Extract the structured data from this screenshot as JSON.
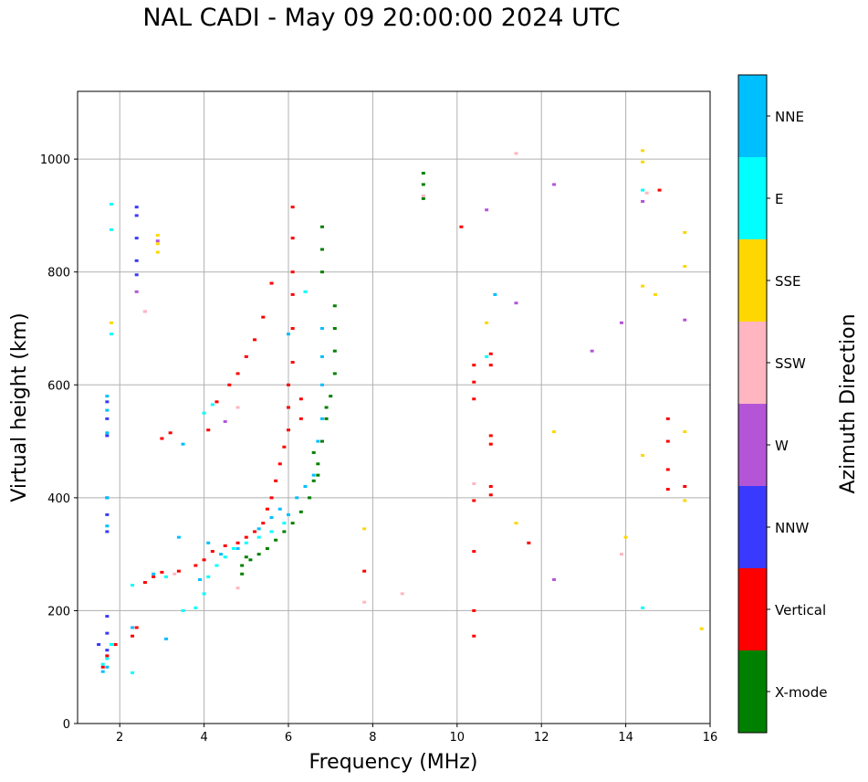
{
  "chart_data": {
    "type": "scatter",
    "title": "NAL CADI - May 09 20:00:00 2024 UTC",
    "xlabel": "Frequency (MHz)",
    "ylabel": "Virtual height (km)",
    "xlim": [
      1.0,
      16.0
    ],
    "ylim": [
      0,
      1120
    ],
    "xticks": [
      2,
      4,
      6,
      8,
      10,
      12,
      14,
      16
    ],
    "yticks": [
      0,
      200,
      400,
      600,
      800,
      1000
    ],
    "grid": true,
    "colorbar": {
      "label": "Azimuth Direction",
      "categories": [
        {
          "name": "X-mode",
          "color": "#008000"
        },
        {
          "name": "Vertical",
          "color": "#ff0000"
        },
        {
          "name": "NNW",
          "color": "#3a3aff"
        },
        {
          "name": "W",
          "color": "#b455d8"
        },
        {
          "name": "SSW",
          "color": "#ffb6c1"
        },
        {
          "name": "SSE",
          "color": "#ffd700"
        },
        {
          "name": "E",
          "color": "#00ffff"
        },
        {
          "name": "NNE",
          "color": "#00bfff"
        }
      ]
    },
    "series": [
      {
        "name": "X-mode",
        "points": [
          [
            4.9,
            280
          ],
          [
            5.1,
            290
          ],
          [
            5.3,
            300
          ],
          [
            5.5,
            310
          ],
          [
            5.7,
            325
          ],
          [
            5.9,
            340
          ],
          [
            6.1,
            355
          ],
          [
            6.3,
            375
          ],
          [
            6.5,
            400
          ],
          [
            6.6,
            430
          ],
          [
            6.7,
            460
          ],
          [
            6.8,
            500
          ],
          [
            6.9,
            540
          ],
          [
            7.0,
            580
          ],
          [
            7.1,
            620
          ],
          [
            7.1,
            660
          ],
          [
            7.1,
            700
          ],
          [
            7.1,
            740
          ],
          [
            6.8,
            800
          ],
          [
            6.8,
            840
          ],
          [
            6.8,
            880
          ],
          [
            4.9,
            265
          ],
          [
            5.0,
            295
          ],
          [
            9.2,
            930
          ],
          [
            9.2,
            955
          ],
          [
            9.2,
            975
          ],
          [
            6.7,
            440
          ],
          [
            6.6,
            480
          ],
          [
            6.9,
            560
          ]
        ]
      },
      {
        "name": "Vertical",
        "points": [
          [
            1.6,
            100
          ],
          [
            1.7,
            120
          ],
          [
            1.9,
            140
          ],
          [
            2.3,
            155
          ],
          [
            2.4,
            170
          ],
          [
            2.6,
            250
          ],
          [
            2.8,
            260
          ],
          [
            3.0,
            268
          ],
          [
            3.4,
            270
          ],
          [
            3.8,
            280
          ],
          [
            4.0,
            290
          ],
          [
            4.2,
            305
          ],
          [
            4.5,
            315
          ],
          [
            4.8,
            320
          ],
          [
            5.0,
            330
          ],
          [
            5.2,
            340
          ],
          [
            5.4,
            355
          ],
          [
            5.5,
            380
          ],
          [
            5.6,
            400
          ],
          [
            5.7,
            430
          ],
          [
            5.8,
            460
          ],
          [
            5.9,
            490
          ],
          [
            6.0,
            520
          ],
          [
            6.0,
            560
          ],
          [
            6.0,
            600
          ],
          [
            6.1,
            640
          ],
          [
            6.1,
            700
          ],
          [
            6.1,
            760
          ],
          [
            6.1,
            800
          ],
          [
            6.1,
            860
          ],
          [
            6.1,
            915
          ],
          [
            4.1,
            520
          ],
          [
            4.3,
            570
          ],
          [
            4.6,
            600
          ],
          [
            4.8,
            620
          ],
          [
            5.0,
            650
          ],
          [
            5.2,
            680
          ],
          [
            5.4,
            720
          ],
          [
            5.6,
            780
          ],
          [
            3.0,
            505
          ],
          [
            3.2,
            515
          ],
          [
            6.3,
            540
          ],
          [
            6.3,
            575
          ],
          [
            10.1,
            880
          ],
          [
            10.4,
            155
          ],
          [
            10.4,
            200
          ],
          [
            10.4,
            305
          ],
          [
            10.4,
            395
          ],
          [
            10.4,
            575
          ],
          [
            10.4,
            605
          ],
          [
            10.4,
            635
          ],
          [
            10.8,
            405
          ],
          [
            10.8,
            420
          ],
          [
            10.8,
            495
          ],
          [
            10.8,
            510
          ],
          [
            10.8,
            635
          ],
          [
            10.8,
            655
          ],
          [
            7.8,
            270
          ],
          [
            11.7,
            320
          ],
          [
            15.0,
            415
          ],
          [
            15.0,
            450
          ],
          [
            15.0,
            500
          ],
          [
            15.0,
            540
          ],
          [
            15.4,
            420
          ],
          [
            14.8,
            945
          ]
        ]
      },
      {
        "name": "NNW",
        "points": [
          [
            1.7,
            340
          ],
          [
            1.7,
            370
          ],
          [
            1.7,
            400
          ],
          [
            1.7,
            510
          ],
          [
            1.7,
            540
          ],
          [
            1.7,
            570
          ],
          [
            1.7,
            190
          ],
          [
            1.7,
            160
          ],
          [
            1.7,
            130
          ],
          [
            2.4,
            820
          ],
          [
            2.4,
            860
          ],
          [
            2.4,
            900
          ],
          [
            2.4,
            915
          ],
          [
            2.4,
            795
          ],
          [
            1.5,
            140
          ]
        ]
      },
      {
        "name": "W",
        "points": [
          [
            12.3,
            955
          ],
          [
            12.3,
            255
          ],
          [
            10.7,
            910
          ],
          [
            11.4,
            745
          ],
          [
            13.2,
            660
          ],
          [
            13.9,
            710
          ],
          [
            14.4,
            925
          ],
          [
            15.4,
            715
          ],
          [
            2.4,
            765
          ],
          [
            2.6,
            730
          ],
          [
            4.5,
            535
          ],
          [
            2.9,
            855
          ]
        ]
      },
      {
        "name": "SSW",
        "points": [
          [
            11.4,
            1010
          ],
          [
            10.4,
            425
          ],
          [
            8.7,
            230
          ],
          [
            7.8,
            215
          ],
          [
            13.9,
            300
          ],
          [
            14.5,
            940
          ],
          [
            2.6,
            730
          ],
          [
            4.8,
            560
          ],
          [
            4.8,
            240
          ],
          [
            9.2,
            935
          ],
          [
            3.3,
            265
          ]
        ]
      },
      {
        "name": "SSE",
        "points": [
          [
            14.4,
            1015
          ],
          [
            14.4,
            995
          ],
          [
            14.4,
            775
          ],
          [
            14.7,
            760
          ],
          [
            14.4,
            475
          ],
          [
            15.4,
            870
          ],
          [
            15.4,
            810
          ],
          [
            15.4,
            517
          ],
          [
            15.4,
            395
          ],
          [
            15.8,
            168
          ],
          [
            12.3,
            517
          ],
          [
            10.7,
            710
          ],
          [
            11.4,
            355
          ],
          [
            7.8,
            345
          ],
          [
            2.9,
            865
          ],
          [
            2.9,
            850
          ],
          [
            2.9,
            835
          ],
          [
            1.8,
            710
          ],
          [
            14.0,
            330
          ]
        ]
      },
      {
        "name": "E",
        "points": [
          [
            1.6,
            105
          ],
          [
            1.7,
            115
          ],
          [
            1.8,
            140
          ],
          [
            2.3,
            245
          ],
          [
            3.1,
            260
          ],
          [
            3.5,
            200
          ],
          [
            3.8,
            205
          ],
          [
            4.0,
            230
          ],
          [
            4.1,
            260
          ],
          [
            4.3,
            280
          ],
          [
            4.5,
            295
          ],
          [
            4.7,
            310
          ],
          [
            5.0,
            320
          ],
          [
            5.3,
            330
          ],
          [
            5.6,
            340
          ],
          [
            5.9,
            355
          ],
          [
            1.8,
            920
          ],
          [
            1.8,
            875
          ],
          [
            1.8,
            690
          ],
          [
            4.0,
            550
          ],
          [
            4.2,
            565
          ],
          [
            14.4,
            205
          ],
          [
            14.4,
            945
          ],
          [
            6.4,
            765
          ],
          [
            10.7,
            650
          ],
          [
            2.3,
            90
          ]
        ]
      },
      {
        "name": "NNE",
        "points": [
          [
            1.7,
            350
          ],
          [
            1.7,
            400
          ],
          [
            1.7,
            515
          ],
          [
            1.7,
            555
          ],
          [
            1.7,
            580
          ],
          [
            2.3,
            170
          ],
          [
            3.1,
            150
          ],
          [
            3.4,
            330
          ],
          [
            3.5,
            495
          ],
          [
            3.9,
            255
          ],
          [
            4.1,
            320
          ],
          [
            4.4,
            300
          ],
          [
            4.8,
            310
          ],
          [
            5.3,
            345
          ],
          [
            5.6,
            365
          ],
          [
            5.8,
            380
          ],
          [
            6.0,
            370
          ],
          [
            6.2,
            400
          ],
          [
            6.4,
            420
          ],
          [
            6.6,
            440
          ],
          [
            6.7,
            500
          ],
          [
            6.8,
            540
          ],
          [
            6.8,
            600
          ],
          [
            6.8,
            650
          ],
          [
            6.8,
            700
          ],
          [
            6.0,
            690
          ],
          [
            10.9,
            760
          ],
          [
            2.8,
            265
          ],
          [
            1.7,
            100
          ],
          [
            1.6,
            92
          ]
        ]
      }
    ]
  }
}
